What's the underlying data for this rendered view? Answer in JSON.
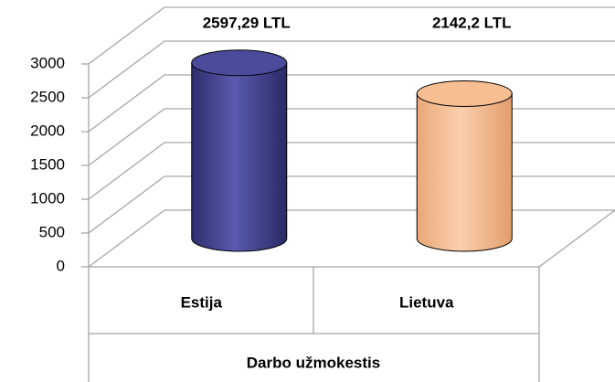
{
  "chart_data": {
    "type": "bar",
    "title": "Darbo užmokestis",
    "categories": [
      "Estija",
      "Lietuva"
    ],
    "values": [
      2597.29,
      2142.2
    ],
    "value_labels": [
      "2597,29 LTL",
      "2142,2 LTL"
    ],
    "colors": [
      "#4b4b9c",
      "#f7be92"
    ],
    "ylim": [
      0,
      3000
    ],
    "yticks": [
      0,
      500,
      1000,
      1500,
      2000,
      2500,
      3000
    ],
    "grid": true
  }
}
